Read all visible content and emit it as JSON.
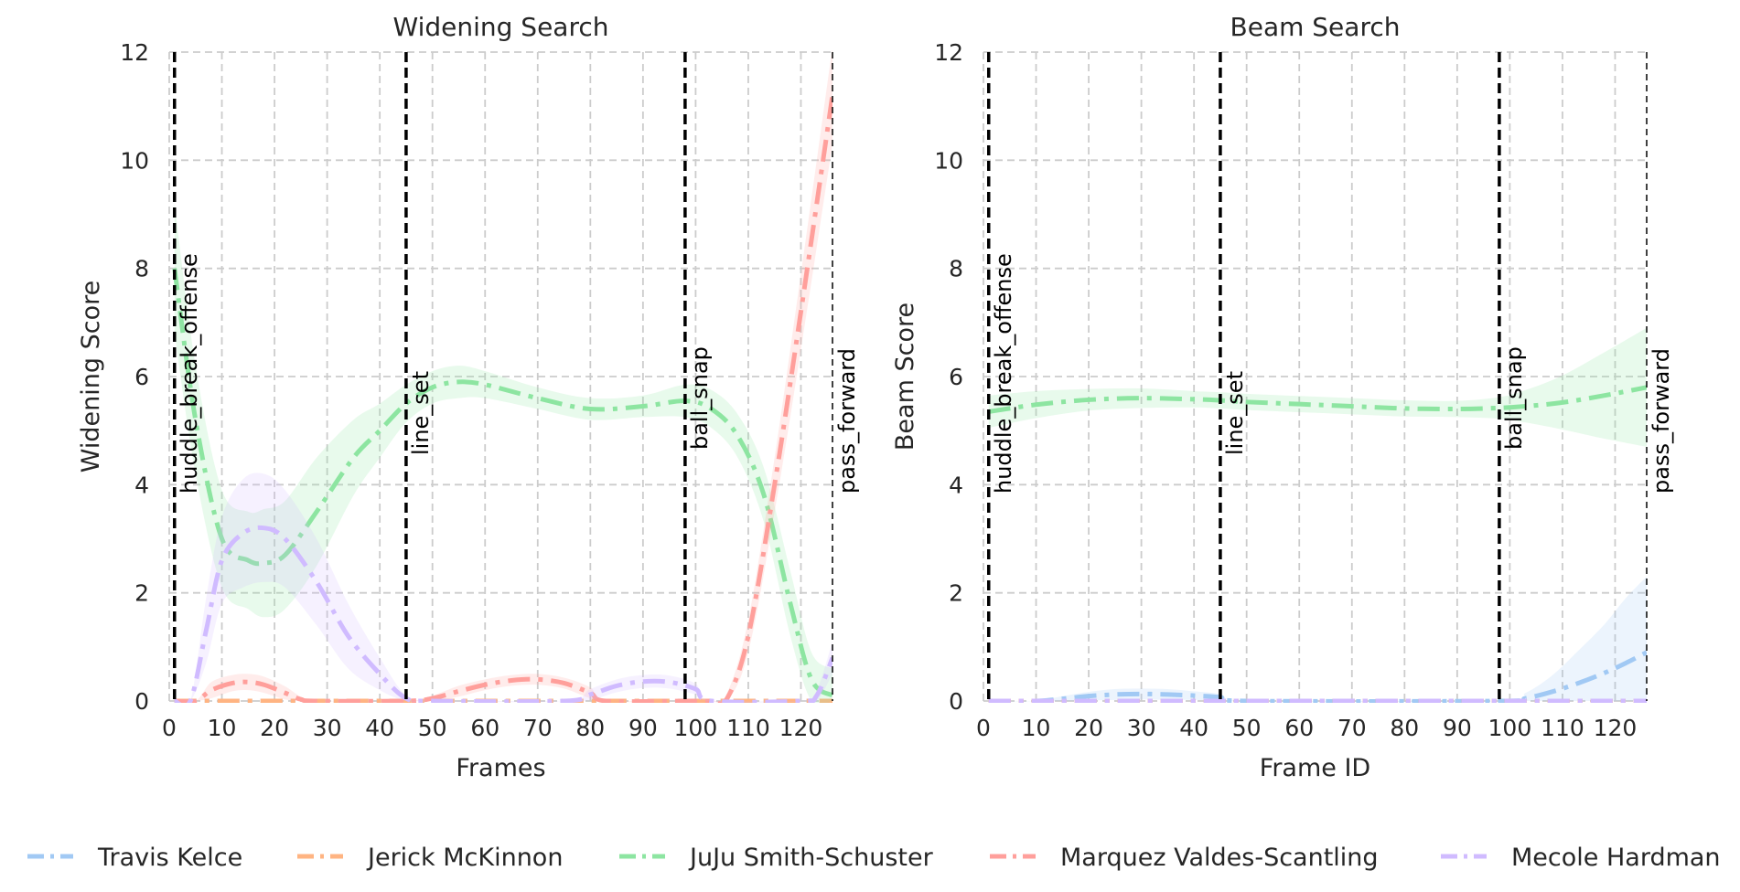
{
  "chart_data": {
    "type": "line",
    "legend": {
      "placement": "bottom",
      "entries": [
        {
          "name": "Travis Kelce",
          "color": "#a1c9f4"
        },
        {
          "name": "Jerick McKinnon",
          "color": "#ffb482"
        },
        {
          "name": "JuJu Smith-Schuster",
          "color": "#8de5a1"
        },
        {
          "name": "Marquez Valdes-Scantling",
          "color": "#ff9f9b"
        },
        {
          "name": "Mecole Hardman",
          "color": "#d0bbff"
        }
      ]
    },
    "panels": [
      {
        "title": "Widening Search",
        "xlabel": "Frames",
        "ylabel": "Widening Score",
        "xlim": [
          0,
          126
        ],
        "ylim": [
          0,
          12
        ],
        "xticks": [
          0,
          10,
          20,
          30,
          40,
          50,
          60,
          70,
          80,
          90,
          100,
          110,
          120
        ],
        "yticks": [
          0,
          2,
          4,
          6,
          8,
          10,
          12
        ],
        "grid": true,
        "events": [
          {
            "x": 1,
            "label": "huddle_break_offense"
          },
          {
            "x": 45,
            "label": "line_set"
          },
          {
            "x": 98,
            "label": "ball_snap"
          },
          {
            "x": 126,
            "label": "pass_forward"
          }
        ],
        "series": [
          {
            "name": "Travis Kelce",
            "color": "#a1c9f4",
            "x": [
              1,
              126
            ],
            "y": [
              0,
              0
            ]
          },
          {
            "name": "Jerick McKinnon",
            "color": "#ffb482",
            "x": [
              1,
              126
            ],
            "y": [
              0,
              0
            ]
          },
          {
            "name": "JuJu Smith-Schuster",
            "color": "#8de5a1",
            "x": [
              1,
              5,
              10,
              15,
              18,
              22,
              28,
              35,
              40,
              45,
              50,
              55,
              60,
              70,
              80,
              90,
              98,
              103,
              108,
              113,
              118,
              122,
              126
            ],
            "y": [
              8.0,
              5.2,
              3.0,
              2.6,
              2.55,
              2.7,
              3.5,
              4.5,
              5.0,
              5.5,
              5.8,
              5.9,
              5.85,
              5.6,
              5.4,
              5.45,
              5.55,
              5.4,
              4.9,
              3.8,
              1.8,
              0.4,
              0.1
            ],
            "band": [
              1.2,
              1.0,
              0.9,
              0.9,
              1.0,
              1.0,
              1.0,
              0.7,
              0.5,
              0.35,
              0.3,
              0.3,
              0.25,
              0.2,
              0.2,
              0.2,
              0.3,
              0.35,
              0.4,
              0.5,
              0.6,
              0.5,
              0.5
            ]
          },
          {
            "name": "Marquez Valdes-Scantling",
            "color": "#ff9f9b",
            "x": [
              1,
              5,
              8,
              12,
              15,
              18,
              22,
              25,
              28,
              45,
              50,
              55,
              60,
              65,
              70,
              75,
              80,
              83,
              98,
              103,
              106,
              110,
              115,
              120,
              126
            ],
            "y": [
              0,
              0,
              0.2,
              0.33,
              0.35,
              0.3,
              0.15,
              0.03,
              0,
              0,
              0.05,
              0.18,
              0.3,
              0.38,
              0.4,
              0.33,
              0.15,
              0,
              0,
              0,
              0.05,
              1.2,
              4.0,
              7.2,
              11.2
            ],
            "band": [
              0,
              0,
              0.15,
              0.15,
              0.15,
              0.15,
              0.12,
              0.05,
              0,
              0,
              0.05,
              0.1,
              0.1,
              0.1,
              0.1,
              0.1,
              0.1,
              0,
              0,
              0,
              0.1,
              0.3,
              0.5,
              0.7,
              0.9
            ]
          },
          {
            "name": "Mecole Hardman",
            "color": "#d0bbff",
            "x": [
              1,
              4,
              7,
              10,
              14,
              18,
              22,
              28,
              34,
              40,
              45,
              50,
              75,
              80,
              85,
              90,
              95,
              100,
              103,
              120,
              123,
              126
            ],
            "y": [
              0,
              0,
              1.3,
              2.6,
              3.1,
              3.2,
              3.0,
              2.2,
              1.2,
              0.5,
              0.05,
              0,
              0,
              0.12,
              0.28,
              0.36,
              0.35,
              0.22,
              0,
              0,
              0.1,
              0.8
            ],
            "band": [
              0,
              0,
              0.6,
              0.8,
              1.0,
              1.0,
              0.9,
              0.8,
              0.6,
              0.3,
              0.05,
              0,
              0,
              0.1,
              0.12,
              0.12,
              0.12,
              0.1,
              0,
              0,
              0.1,
              0.3
            ]
          }
        ]
      },
      {
        "title": "Beam Search",
        "xlabel": "Frame ID",
        "ylabel": "Beam Score",
        "xlim": [
          0,
          126
        ],
        "ylim": [
          0,
          12
        ],
        "xticks": [
          0,
          10,
          20,
          30,
          40,
          50,
          60,
          70,
          80,
          90,
          100,
          110,
          120
        ],
        "yticks": [
          0,
          2,
          4,
          6,
          8,
          10,
          12
        ],
        "grid": true,
        "events": [
          {
            "x": 1,
            "label": "huddle_break_offense"
          },
          {
            "x": 45,
            "label": "line_set"
          },
          {
            "x": 98,
            "label": "ball_snap"
          },
          {
            "x": 126,
            "label": "pass_forward"
          }
        ],
        "series": [
          {
            "name": "Travis Kelce",
            "color": "#a1c9f4",
            "x": [
              1,
              10,
              15,
              20,
              25,
              30,
              35,
              40,
              45,
              50,
              98,
              103,
              108,
              113,
              118,
              122,
              126
            ],
            "y": [
              0,
              0,
              0.04,
              0.09,
              0.12,
              0.13,
              0.12,
              0.1,
              0.07,
              0,
              0,
              0.05,
              0.17,
              0.33,
              0.52,
              0.7,
              0.9
            ],
            "band": [
              0,
              0,
              0.05,
              0.08,
              0.1,
              0.1,
              0.1,
              0.08,
              0.06,
              0,
              0,
              0.1,
              0.3,
              0.6,
              0.9,
              1.2,
              1.4
            ]
          },
          {
            "name": "Jerick McKinnon",
            "color": "#ffb482",
            "x": [
              1,
              126
            ],
            "y": [
              0,
              0
            ]
          },
          {
            "name": "JuJu Smith-Schuster",
            "color": "#8de5a1",
            "x": [
              1,
              10,
              20,
              30,
              40,
              45,
              50,
              60,
              70,
              80,
              90,
              98,
              103,
              110,
              118,
              126
            ],
            "y": [
              5.35,
              5.48,
              5.57,
              5.6,
              5.58,
              5.56,
              5.53,
              5.49,
              5.45,
              5.41,
              5.4,
              5.42,
              5.45,
              5.52,
              5.65,
              5.8
            ],
            "band": [
              0.3,
              0.25,
              0.2,
              0.18,
              0.15,
              0.15,
              0.15,
              0.15,
              0.15,
              0.15,
              0.15,
              0.2,
              0.3,
              0.5,
              0.8,
              1.1
            ]
          },
          {
            "name": "Marquez Valdes-Scantling",
            "color": "#ff9f9b",
            "x": [
              1,
              126
            ],
            "y": [
              0,
              0
            ]
          },
          {
            "name": "Mecole Hardman",
            "color": "#d0bbff",
            "x": [
              1,
              126
            ],
            "y": [
              0,
              0
            ]
          }
        ]
      }
    ]
  }
}
